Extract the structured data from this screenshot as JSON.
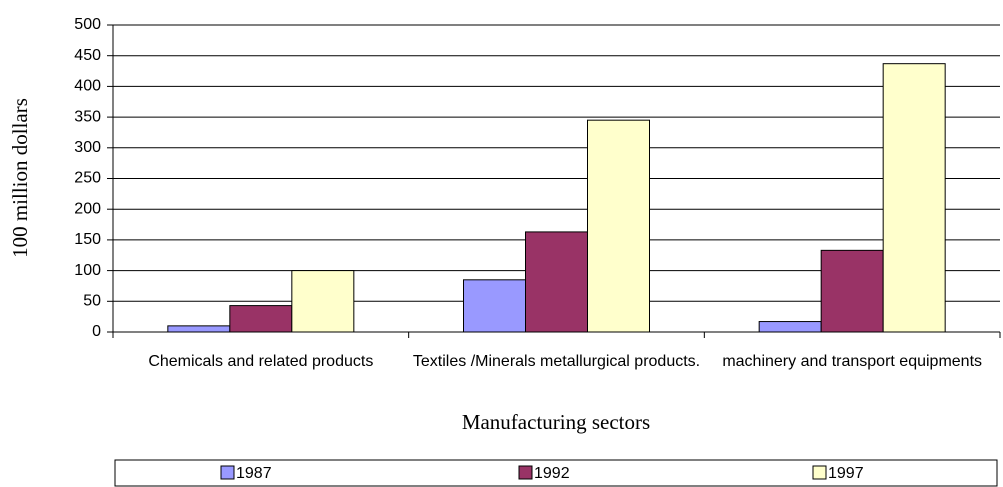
{
  "chart_data": {
    "type": "bar",
    "x_label": "Manufacturing sectors",
    "y_label": "100 million dollars",
    "categories": [
      "Chemicals and related products",
      "Textiles /Minerals metallurgical products.",
      "machinery and transport equipments"
    ],
    "series": [
      {
        "name": "1987",
        "color": "#9999ff",
        "values": [
          10,
          85,
          17
        ]
      },
      {
        "name": "1992",
        "color": "#993366",
        "values": [
          43,
          163,
          133
        ]
      },
      {
        "name": "1997",
        "color": "#ffffcc",
        "values": [
          100,
          345,
          437
        ]
      }
    ],
    "ylim": [
      0,
      500
    ],
    "yticks": [
      0,
      50,
      100,
      150,
      200,
      250,
      300,
      350,
      400,
      450,
      500
    ],
    "grid": true,
    "legend": "bottom"
  }
}
